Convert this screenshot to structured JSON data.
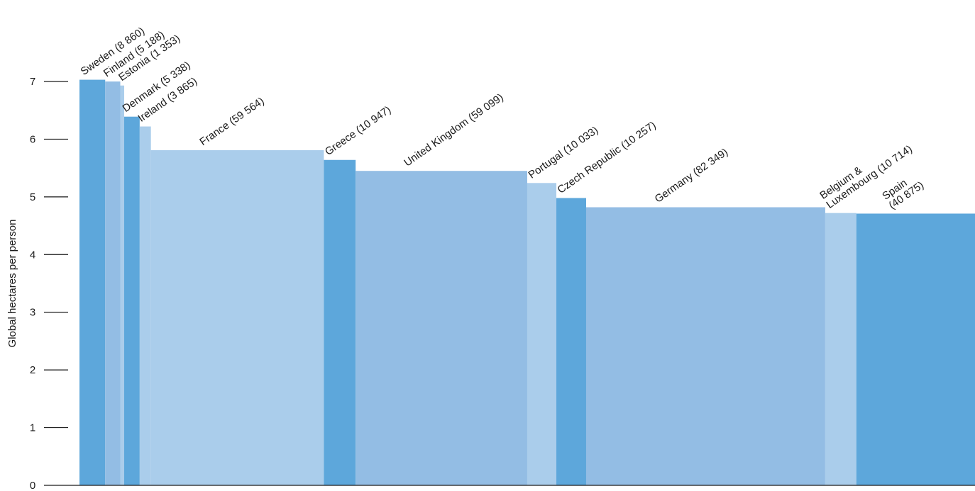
{
  "chart_data": {
    "type": "bar",
    "title": "",
    "xlabel": "",
    "ylabel": "Global hectares per person",
    "ylim": [
      0,
      7
    ],
    "yticks": [
      "0",
      "1",
      "2",
      "3",
      "4",
      "5",
      "6",
      "7"
    ],
    "grid": false,
    "bar_width_encodes": "population (thousands)",
    "colors": [
      "#5da7db",
      "#93bde4",
      "#aacdeb"
    ],
    "bars": [
      {
        "country": "Sweden",
        "label": [
          "Sweden (8 860)"
        ],
        "population": 8860,
        "value": 7.03
      },
      {
        "country": "Finland",
        "label": [
          "Finland (5 188)"
        ],
        "population": 5188,
        "value": 7.0
      },
      {
        "country": "Estonia",
        "label": [
          "Estonia (1 353)"
        ],
        "population": 1353,
        "value": 6.93
      },
      {
        "country": "Denmark",
        "label": [
          "Denmark (5 338)"
        ],
        "population": 5338,
        "value": 6.39
      },
      {
        "country": "Ireland",
        "label": [
          "Ireland (3 865)"
        ],
        "population": 3865,
        "value": 6.22
      },
      {
        "country": "France",
        "label": [
          "France (59 564)"
        ],
        "population": 59564,
        "value": 5.81
      },
      {
        "country": "Greece",
        "label": [
          "Greece (10 947)"
        ],
        "population": 10947,
        "value": 5.64
      },
      {
        "country": "United Kingdom",
        "label": [
          "United Kingdom (59 099)"
        ],
        "population": 59099,
        "value": 5.45
      },
      {
        "country": "Portugal",
        "label": [
          "Portugal (10 033)"
        ],
        "population": 10033,
        "value": 5.24
      },
      {
        "country": "Czech Republic",
        "label": [
          "Czech Republic (10 257)"
        ],
        "population": 10257,
        "value": 4.98
      },
      {
        "country": "Germany",
        "label": [
          "Germany (82 349)"
        ],
        "population": 82349,
        "value": 4.82
      },
      {
        "country": "Belgium & Luxembourg",
        "label": [
          "Belgium &",
          "Luxembourg (10 714)"
        ],
        "population": 10714,
        "value": 4.72
      },
      {
        "country": "Spain",
        "label": [
          "Spain",
          "(40 875)"
        ],
        "population": 40875,
        "value": 4.71
      }
    ]
  }
}
